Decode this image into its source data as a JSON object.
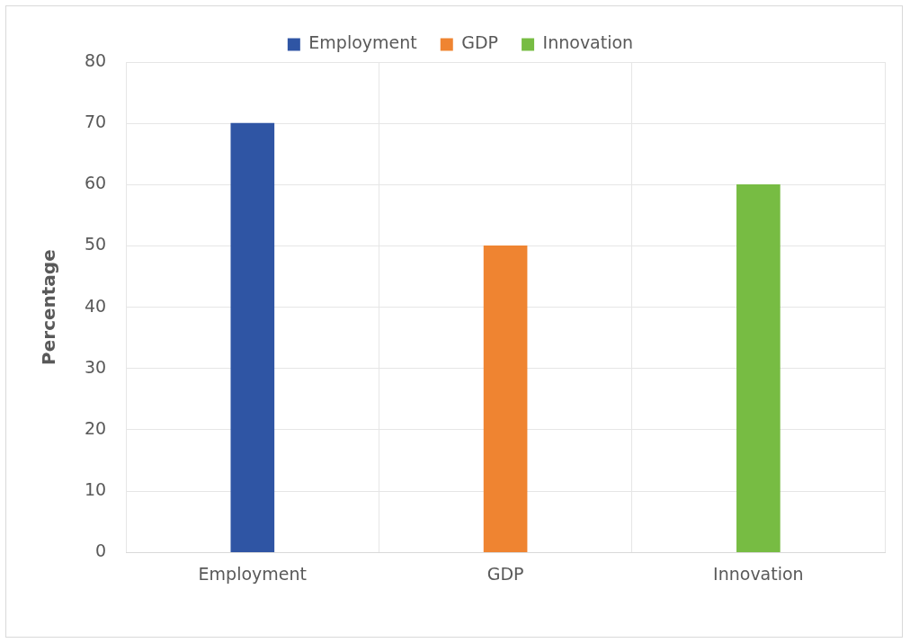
{
  "chart_data": {
    "type": "bar",
    "stacked": true,
    "ylabel": "Percentage",
    "categories": [
      "Employment",
      "GDP",
      "Innovation"
    ],
    "series": [
      {
        "name": "Employment",
        "color": "#2f55a4",
        "values": [
          70,
          null,
          null
        ]
      },
      {
        "name": "GDP",
        "color": "#ef8431",
        "values": [
          null,
          50,
          null
        ]
      },
      {
        "name": "Innovation",
        "color": "#77bc43",
        "values": [
          null,
          null,
          60
        ]
      }
    ],
    "ylim": [
      0,
      80
    ],
    "yticks": [
      0,
      10,
      20,
      30,
      40,
      50,
      60,
      70,
      80
    ],
    "grid": true,
    "legend": "top"
  }
}
